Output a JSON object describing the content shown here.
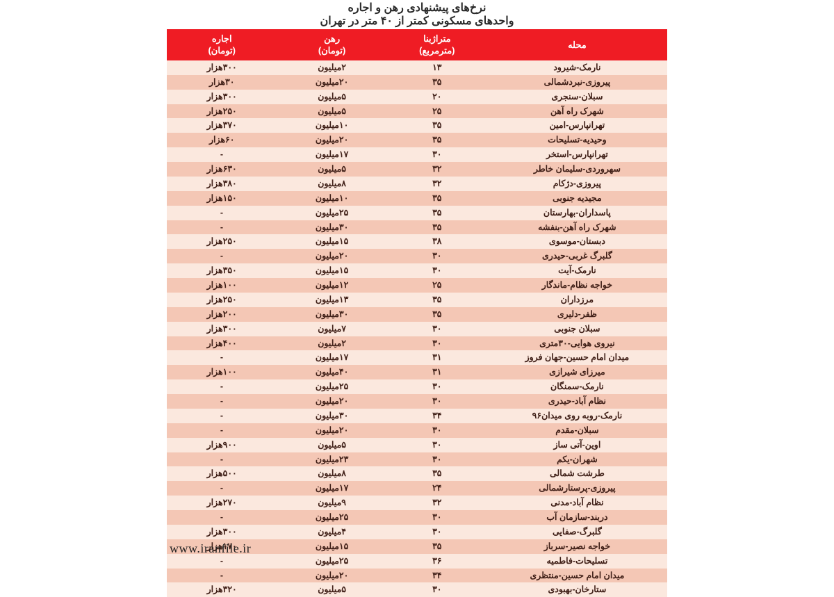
{
  "title": {
    "line1": "نرخ‌های پیشنهادی رهن و اجاره",
    "line2": "واحدهای مسکونی کمتر از ۴۰ متر در تهران"
  },
  "colors": {
    "header_bg": "#ef1c24",
    "header_fg": "#ffffff",
    "row_odd_bg": "#fbe8de",
    "row_even_bg": "#f4c7b5",
    "text_color": "#402018"
  },
  "columns": [
    {
      "key": "neighborhood",
      "label": "محله"
    },
    {
      "key": "area",
      "label": "متراژبنا\n(مترمربع)"
    },
    {
      "key": "deposit",
      "label": "رهن\n(تومان)"
    },
    {
      "key": "rent",
      "label": "اجاره\n(تومان)"
    }
  ],
  "rows": [
    {
      "neighborhood": "نارمک-شیرود",
      "area": "۱۳",
      "deposit": "۲میلیون",
      "rent": "۳۰۰هزار"
    },
    {
      "neighborhood": "پیروزی-نبردشمالی",
      "area": "۳۵",
      "deposit": "۲۰میلیون",
      "rent": "۳۰هزار"
    },
    {
      "neighborhood": "سبلان-سنجری",
      "area": "۲۰",
      "deposit": "۵میلیون",
      "rent": "۳۰۰هزار"
    },
    {
      "neighborhood": "شهرک راه آهن",
      "area": "۲۵",
      "deposit": "۵میلیون",
      "rent": "۲۵۰هزار"
    },
    {
      "neighborhood": "تهرانپارس-امین",
      "area": "۳۵",
      "deposit": "۱۰میلیون",
      "rent": "۳۷۰هزار"
    },
    {
      "neighborhood": "وحیدیه-تسلیحات",
      "area": "۳۵",
      "deposit": "۲۰میلیون",
      "rent": "۶۰هزار"
    },
    {
      "neighborhood": "تهرانپارس-استخر",
      "area": "۳۰",
      "deposit": "۱۷میلیون",
      "rent": "-"
    },
    {
      "neighborhood": "سهروردی-سلیمان خاطر",
      "area": "۳۲",
      "deposit": "۵میلیون",
      "rent": "۶۳۰هزار"
    },
    {
      "neighborhood": "پیروزی-دژکام",
      "area": "۳۲",
      "deposit": "۸میلیون",
      "rent": "۳۸۰هزار"
    },
    {
      "neighborhood": "مجیدیه جنوبی",
      "area": "۳۵",
      "deposit": "۱۰میلیون",
      "rent": "۱۵۰هزار"
    },
    {
      "neighborhood": "پاسداران-بهارستان",
      "area": "۳۵",
      "deposit": "۲۵میلیون",
      "rent": "-"
    },
    {
      "neighborhood": "شهرک راه آهن-بنفشه",
      "area": "۳۵",
      "deposit": "۳۰میلیون",
      "rent": "-"
    },
    {
      "neighborhood": "دبستان-موسوی",
      "area": "۳۸",
      "deposit": "۱۵میلیون",
      "rent": "۲۵۰هزار"
    },
    {
      "neighborhood": "گلبرگ غربی-حیدری",
      "area": "۳۰",
      "deposit": "۲۰میلیون",
      "rent": "-"
    },
    {
      "neighborhood": "نارمک-آیت",
      "area": "۳۰",
      "deposit": "۱۵میلیون",
      "rent": "۳۵۰هزار"
    },
    {
      "neighborhood": "خواجه نظام-ماندگار",
      "area": "۲۵",
      "deposit": "۱۲میلیون",
      "rent": "۱۰۰هزار"
    },
    {
      "neighborhood": "مرزداران",
      "area": "۳۵",
      "deposit": "۱۳میلیون",
      "rent": "۲۵۰هزار"
    },
    {
      "neighborhood": "ظفر-دلیری",
      "area": "۳۵",
      "deposit": "۳۰میلیون",
      "rent": "۲۰۰هزار"
    },
    {
      "neighborhood": "سبلان جنوبی",
      "area": "۳۰",
      "deposit": "۷میلیون",
      "rent": "۳۰۰هزار"
    },
    {
      "neighborhood": "نیروی هوایی-۳۰متری",
      "area": "۳۰",
      "deposit": "۲میلیون",
      "rent": "۴۰۰هزار"
    },
    {
      "neighborhood": "میدان امام حسین-جهان فروز",
      "area": "۳۱",
      "deposit": "۱۷میلیون",
      "rent": "-"
    },
    {
      "neighborhood": "میرزای شیرازی",
      "area": "۳۱",
      "deposit": "۴۰میلیون",
      "rent": "۱۰۰هزار"
    },
    {
      "neighborhood": "نارمک-سمنگان",
      "area": "۳۰",
      "deposit": "۲۵میلیون",
      "rent": "-"
    },
    {
      "neighborhood": "نظام آباد-حیدری",
      "area": "۳۰",
      "deposit": "۲۰میلیون",
      "rent": "-"
    },
    {
      "neighborhood": "نارمک-روبه روی میدان۹۶",
      "area": "۳۴",
      "deposit": "۳۰میلیون",
      "rent": "-"
    },
    {
      "neighborhood": "سبلان-مقدم",
      "area": "۳۰",
      "deposit": "۲۰میلیون",
      "rent": "-"
    },
    {
      "neighborhood": "اوین-آتی ساز",
      "area": "۳۰",
      "deposit": "۵میلیون",
      "rent": "۹۰۰هزار"
    },
    {
      "neighborhood": "شهران-یکم",
      "area": "۳۰",
      "deposit": "۲۳میلیون",
      "rent": "-"
    },
    {
      "neighborhood": "طرشت شمالی",
      "area": "۳۵",
      "deposit": "۸میلیون",
      "rent": "۵۰۰هزار"
    },
    {
      "neighborhood": "پیروزی-پرستارشمالی",
      "area": "۲۴",
      "deposit": "۱۷میلیون",
      "rent": "-"
    },
    {
      "neighborhood": "نظام آباد-مدنی",
      "area": "۳۲",
      "deposit": "۹میلیون",
      "rent": "۲۷۰هزار"
    },
    {
      "neighborhood": "دربند-سازمان آب",
      "area": "۳۰",
      "deposit": "۲۵میلیون",
      "rent": "-"
    },
    {
      "neighborhood": "گلبرگ-صفایی",
      "area": "۳۰",
      "deposit": "۴میلیون",
      "rent": "۳۰۰هزار"
    },
    {
      "neighborhood": "خواجه نصیر-سرباز",
      "area": "۳۵",
      "deposit": "۱۵میلیون",
      "rent": "۱۷۰هزار"
    },
    {
      "neighborhood": "تسلیحات-فاطمیه",
      "area": "۳۶",
      "deposit": "۲۵میلیون",
      "rent": "-"
    },
    {
      "neighborhood": "میدان امام حسین-منتظری",
      "area": "۳۴",
      "deposit": "۲۰میلیون",
      "rent": "-"
    },
    {
      "neighborhood": "ستارخان-بهبودی",
      "area": "۳۰",
      "deposit": "۵میلیون",
      "rent": "۳۲۰هزار"
    }
  ],
  "watermark": "www.iranfile.ir",
  "table_style": {
    "header_fontsize_pt": 13,
    "cell_fontsize_pt": 12.5,
    "font_weight": 700,
    "col_widths_pct": [
      36,
      20,
      22,
      22
    ]
  }
}
